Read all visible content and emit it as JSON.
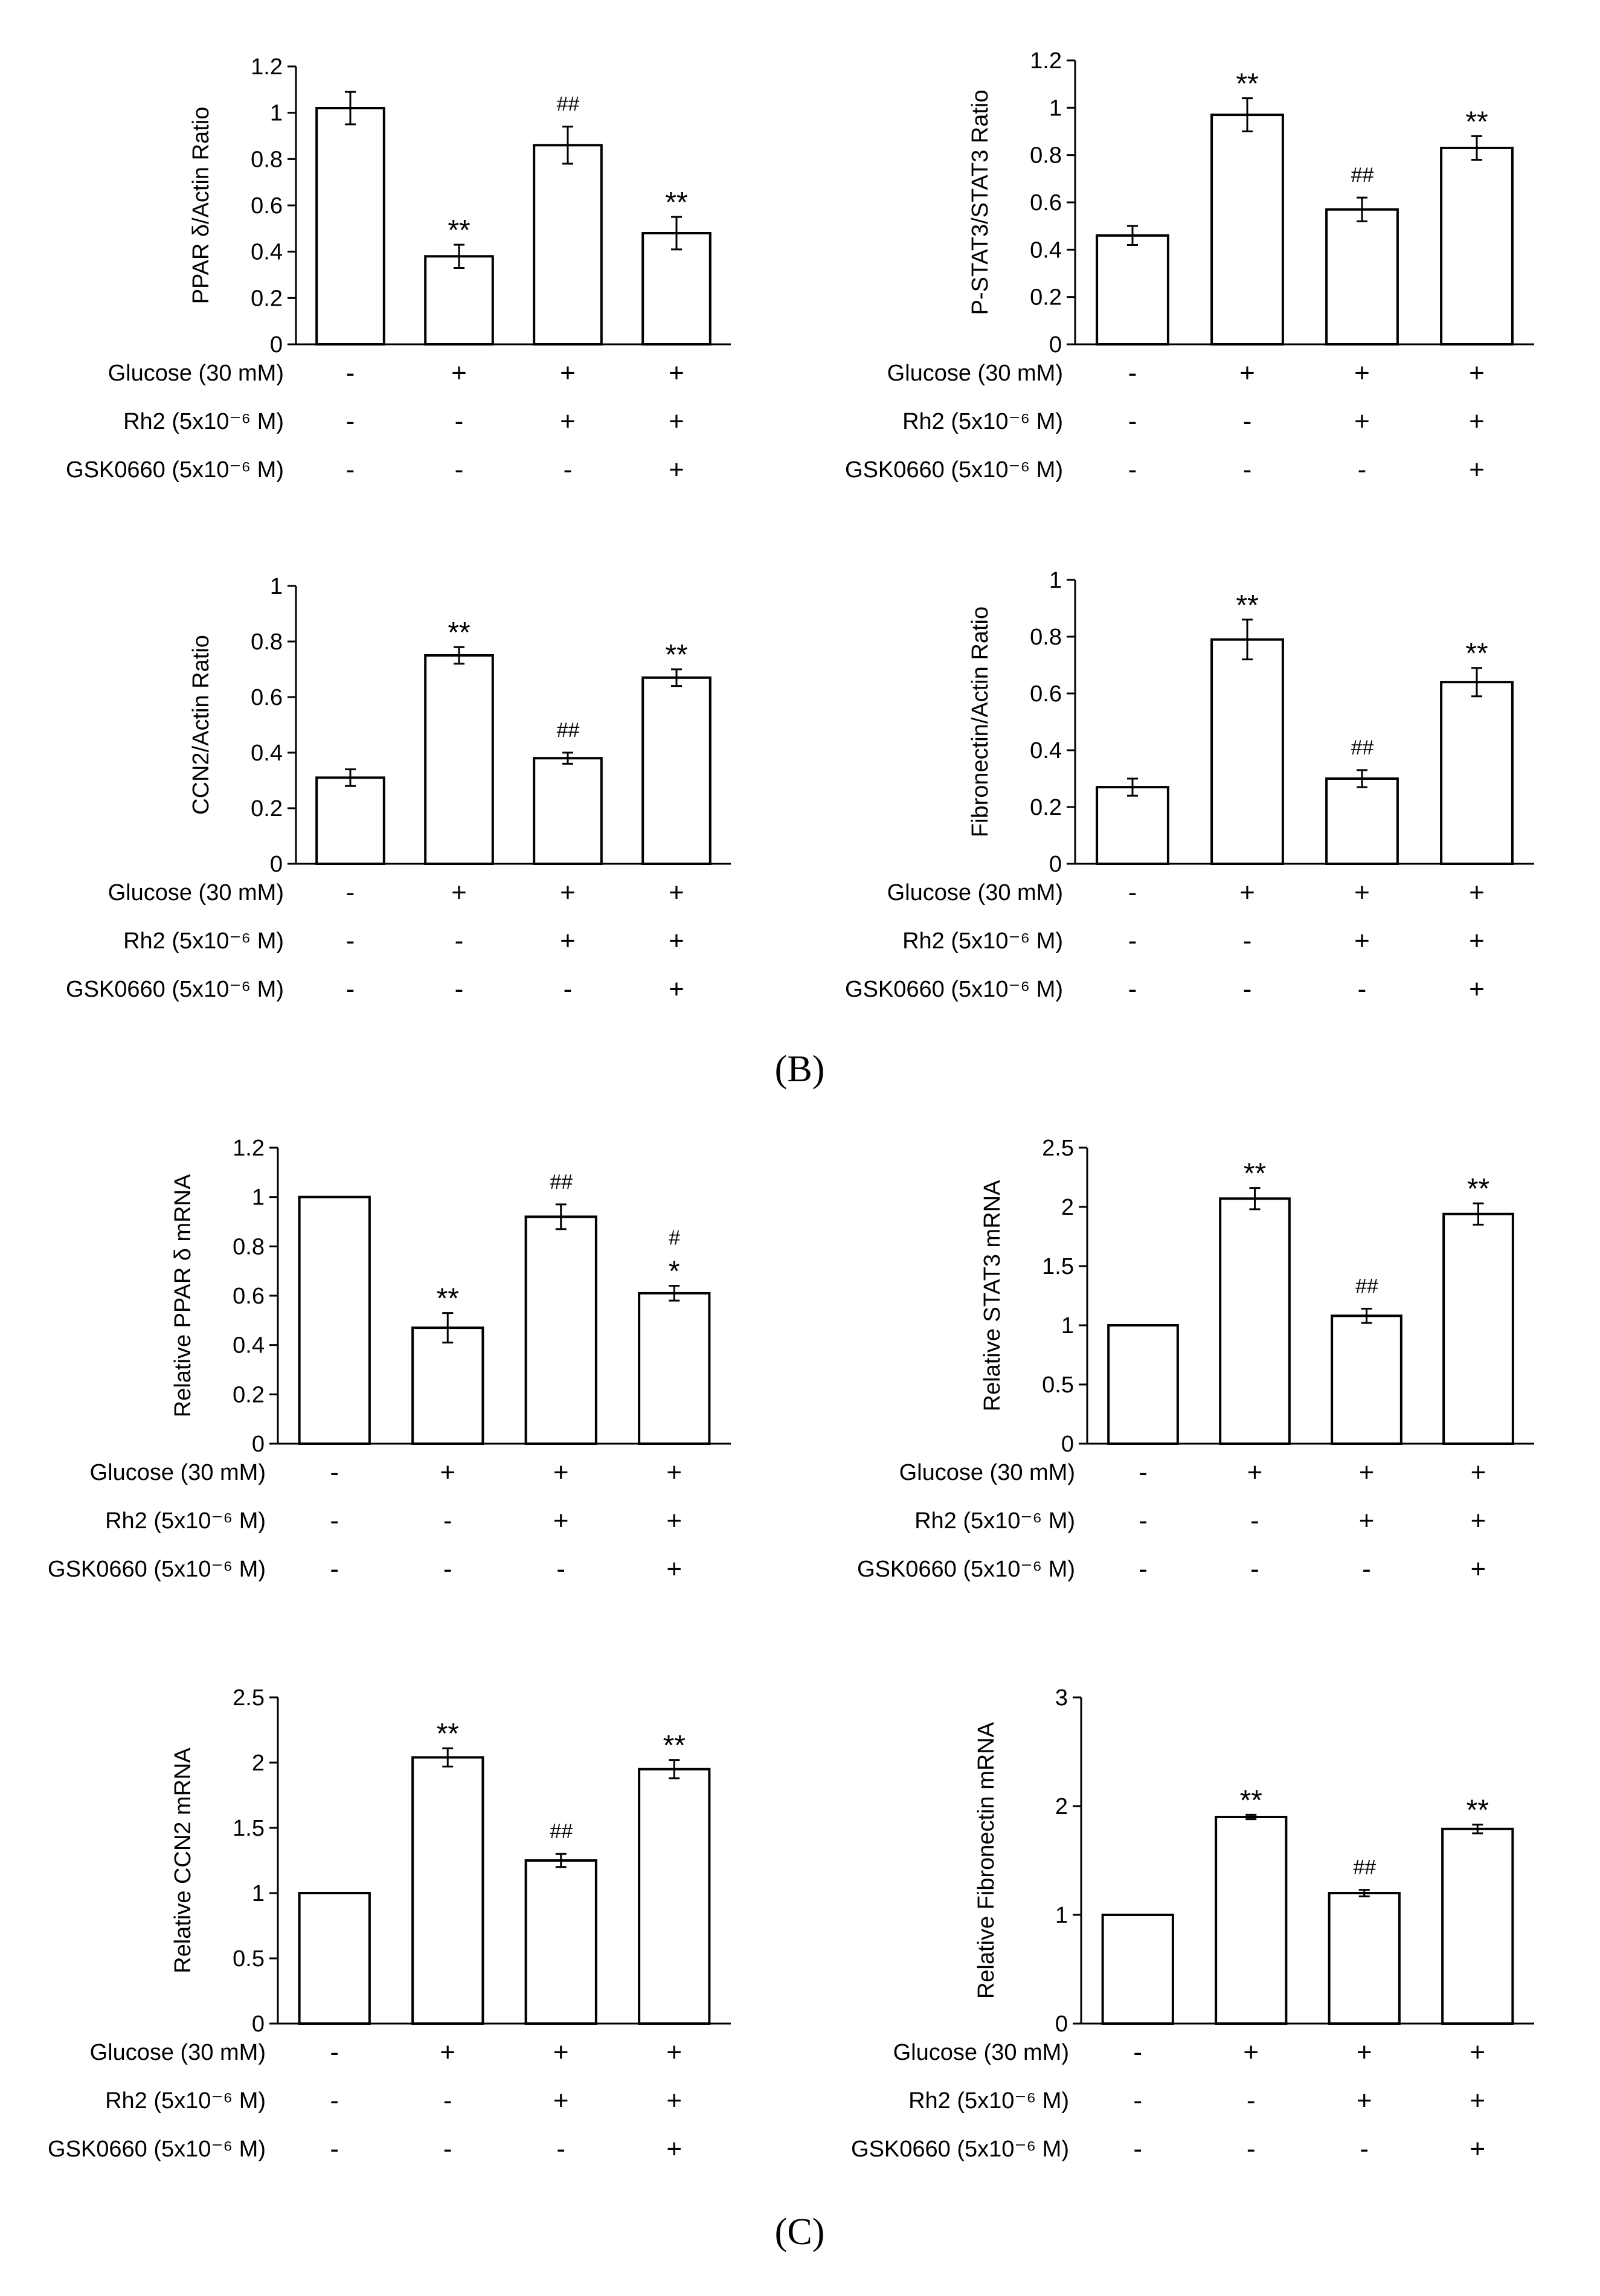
{
  "panel_labels": {
    "b": "(B)",
    "c": "(C)"
  },
  "colors": {
    "bar_fill": "#ffffff",
    "stroke": "#000000"
  },
  "chart_data": [
    {
      "id": "ppard-actin",
      "type": "bar",
      "ylabel": "PPAR δ/Actin Ratio",
      "ylim": [
        0,
        1.2
      ],
      "ticks": [
        "0",
        "0.2",
        "0.4",
        "0.6",
        "0.8",
        "1",
        "1.2"
      ],
      "values": [
        1.02,
        0.38,
        0.86,
        0.48
      ],
      "errors": [
        0.07,
        0.05,
        0.08,
        0.07
      ],
      "annotations": [
        [],
        [
          "**"
        ],
        [
          "##"
        ],
        [
          "**"
        ]
      ],
      "conditions": [
        {
          "label": "Glucose (30 mM)",
          "signs": [
            "-",
            "+",
            "+",
            "+"
          ]
        },
        {
          "label": "Rh2 (5x10⁻⁶ M)",
          "signs": [
            "-",
            "-",
            "+",
            "+"
          ]
        },
        {
          "label": "GSK0660 (5x10⁻⁶ M)",
          "signs": [
            "-",
            "-",
            "-",
            "+"
          ]
        }
      ]
    },
    {
      "id": "pstat3-stat3",
      "type": "bar",
      "ylabel": "P-STAT3/STAT3 Ratio",
      "ylim": [
        0,
        1.2
      ],
      "ticks": [
        "0",
        "0.2",
        "0.4",
        "0.6",
        "0.8",
        "1",
        "1.2"
      ],
      "values": [
        0.46,
        0.97,
        0.57,
        0.83
      ],
      "errors": [
        0.04,
        0.07,
        0.05,
        0.05
      ],
      "annotations": [
        [],
        [
          "**"
        ],
        [
          "##"
        ],
        [
          "**"
        ]
      ],
      "conditions": [
        {
          "label": "Glucose (30 mM)",
          "signs": [
            "-",
            "+",
            "+",
            "+"
          ]
        },
        {
          "label": "Rh2 (5x10⁻⁶ M)",
          "signs": [
            "-",
            "-",
            "+",
            "+"
          ]
        },
        {
          "label": "GSK0660 (5x10⁻⁶ M)",
          "signs": [
            "-",
            "-",
            "-",
            "+"
          ]
        }
      ]
    },
    {
      "id": "ccn2-actin",
      "type": "bar",
      "ylabel": "CCN2/Actin Ratio",
      "ylim": [
        0,
        1
      ],
      "ticks": [
        "0",
        "0.2",
        "0.4",
        "0.6",
        "0.8",
        "1"
      ],
      "values": [
        0.31,
        0.75,
        0.38,
        0.67
      ],
      "errors": [
        0.03,
        0.03,
        0.02,
        0.03
      ],
      "annotations": [
        [],
        [
          "**"
        ],
        [
          "##"
        ],
        [
          "**"
        ]
      ],
      "conditions": [
        {
          "label": "Glucose (30 mM)",
          "signs": [
            "-",
            "+",
            "+",
            "+"
          ]
        },
        {
          "label": "Rh2 (5x10⁻⁶ M)",
          "signs": [
            "-",
            "-",
            "+",
            "+"
          ]
        },
        {
          "label": "GSK0660 (5x10⁻⁶ M)",
          "signs": [
            "-",
            "-",
            "-",
            "+"
          ]
        }
      ]
    },
    {
      "id": "fibronectin-actin",
      "type": "bar",
      "ylabel": "Fibronectin/Actin Ratio",
      "ylim": [
        0,
        1
      ],
      "ticks": [
        "0",
        "0.2",
        "0.4",
        "0.6",
        "0.8",
        "1"
      ],
      "values": [
        0.27,
        0.79,
        0.3,
        0.64
      ],
      "errors": [
        0.03,
        0.07,
        0.03,
        0.05
      ],
      "annotations": [
        [],
        [
          "**"
        ],
        [
          "##"
        ],
        [
          "**"
        ]
      ],
      "conditions": [
        {
          "label": "Glucose (30 mM)",
          "signs": [
            "-",
            "+",
            "+",
            "+"
          ]
        },
        {
          "label": "Rh2 (5x10⁻⁶ M)",
          "signs": [
            "-",
            "-",
            "+",
            "+"
          ]
        },
        {
          "label": "GSK0660 (5x10⁻⁶ M)",
          "signs": [
            "-",
            "-",
            "-",
            "+"
          ]
        }
      ]
    },
    {
      "id": "ppard-mrna",
      "type": "bar",
      "ylabel": "Relative PPAR δ mRNA",
      "ylim": [
        0,
        1.2
      ],
      "ticks": [
        "0",
        "0.2",
        "0.4",
        "0.6",
        "0.8",
        "1",
        "1.2"
      ],
      "values": [
        1.0,
        0.47,
        0.92,
        0.61
      ],
      "errors": [
        0,
        0.06,
        0.05,
        0.03
      ],
      "annotations": [
        [],
        [
          "**"
        ],
        [
          "##"
        ],
        [
          "#",
          "*"
        ]
      ],
      "conditions": [
        {
          "label": "Glucose (30 mM)",
          "signs": [
            "-",
            "+",
            "+",
            "+"
          ]
        },
        {
          "label": "Rh2 (5x10⁻⁶ M)",
          "signs": [
            "-",
            "-",
            "+",
            "+"
          ]
        },
        {
          "label": "GSK0660 (5x10⁻⁶ M)",
          "signs": [
            "-",
            "-",
            "-",
            "+"
          ]
        }
      ]
    },
    {
      "id": "stat3-mrna",
      "type": "bar",
      "ylabel": "Relative STAT3 mRNA",
      "ylim": [
        0,
        2.5
      ],
      "ticks": [
        "0",
        "0.5",
        "1",
        "1.5",
        "2",
        "2.5"
      ],
      "values": [
        1.0,
        2.07,
        1.08,
        1.94
      ],
      "errors": [
        0,
        0.09,
        0.06,
        0.09
      ],
      "annotations": [
        [],
        [
          "**"
        ],
        [
          "##"
        ],
        [
          "**"
        ]
      ],
      "conditions": [
        {
          "label": "Glucose (30 mM)",
          "signs": [
            "-",
            "+",
            "+",
            "+"
          ]
        },
        {
          "label": "Rh2 (5x10⁻⁶ M)",
          "signs": [
            "-",
            "-",
            "+",
            "+"
          ]
        },
        {
          "label": "GSK0660 (5x10⁻⁶ M)",
          "signs": [
            "-",
            "-",
            "-",
            "+"
          ]
        }
      ]
    },
    {
      "id": "ccn2-mrna",
      "type": "bar",
      "ylabel": "Relative CCN2 mRNA",
      "ylim": [
        0,
        2.5
      ],
      "ticks": [
        "0",
        "0.5",
        "1",
        "1.5",
        "2",
        "2.5"
      ],
      "values": [
        1.0,
        2.04,
        1.25,
        1.95
      ],
      "errors": [
        0,
        0.07,
        0.05,
        0.07
      ],
      "annotations": [
        [],
        [
          "**"
        ],
        [
          "##"
        ],
        [
          "**"
        ]
      ],
      "conditions": [
        {
          "label": "Glucose (30 mM)",
          "signs": [
            "-",
            "+",
            "+",
            "+"
          ]
        },
        {
          "label": "Rh2 (5x10⁻⁶ M)",
          "signs": [
            "-",
            "-",
            "+",
            "+"
          ]
        },
        {
          "label": "GSK0660 (5x10⁻⁶ M)",
          "signs": [
            "-",
            "-",
            "-",
            "+"
          ]
        }
      ]
    },
    {
      "id": "fibronectin-mrna",
      "type": "bar",
      "ylabel": "Relative Fibronectin mRNA",
      "ylim": [
        0,
        3
      ],
      "ticks": [
        "0",
        "1",
        "2",
        "3"
      ],
      "values": [
        1.0,
        1.9,
        1.2,
        1.79
      ],
      "errors": [
        0,
        0.02,
        0.03,
        0.04
      ],
      "annotations": [
        [],
        [
          "**"
        ],
        [
          "##"
        ],
        [
          "**"
        ]
      ],
      "conditions": [
        {
          "label": "Glucose (30 mM)",
          "signs": [
            "-",
            "+",
            "+",
            "+"
          ]
        },
        {
          "label": "Rh2 (5x10⁻⁶ M)",
          "signs": [
            "-",
            "-",
            "+",
            "+"
          ]
        },
        {
          "label": "GSK0660 (5x10⁻⁶ M)",
          "signs": [
            "-",
            "-",
            "-",
            "+"
          ]
        }
      ]
    }
  ]
}
